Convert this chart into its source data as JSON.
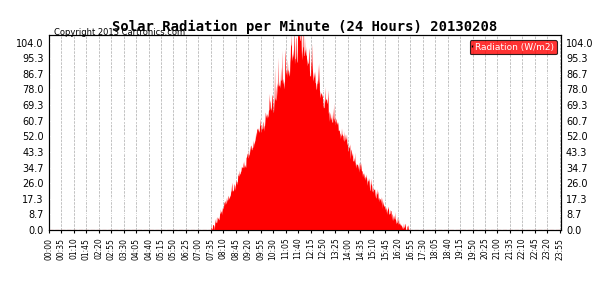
{
  "title": "Solar Radiation per Minute (24 Hours) 20130208",
  "copyright_text": "Copyright 2013 Cartronics.com",
  "legend_label": "Radiation (W/m2)",
  "background_color": "#ffffff",
  "bar_color": "#ff0000",
  "grid_color_h": "#ffffff",
  "grid_color_v": "#aaaaaa",
  "ytick_labels": [
    "0.0",
    "8.7",
    "17.3",
    "26.0",
    "34.7",
    "43.3",
    "52.0",
    "60.7",
    "69.3",
    "78.0",
    "86.7",
    "95.3",
    "104.0"
  ],
  "ytick_values": [
    0.0,
    8.7,
    17.3,
    26.0,
    34.7,
    43.3,
    52.0,
    60.7,
    69.3,
    78.0,
    86.7,
    95.3,
    104.0
  ],
  "ymax": 108,
  "sunrise_minute": 455,
  "sunset_minute": 1015,
  "peak_minute": 700,
  "peak_value": 104.0,
  "seed": 37,
  "noise_sigma": 5.5,
  "spike_sigma": 9.0
}
